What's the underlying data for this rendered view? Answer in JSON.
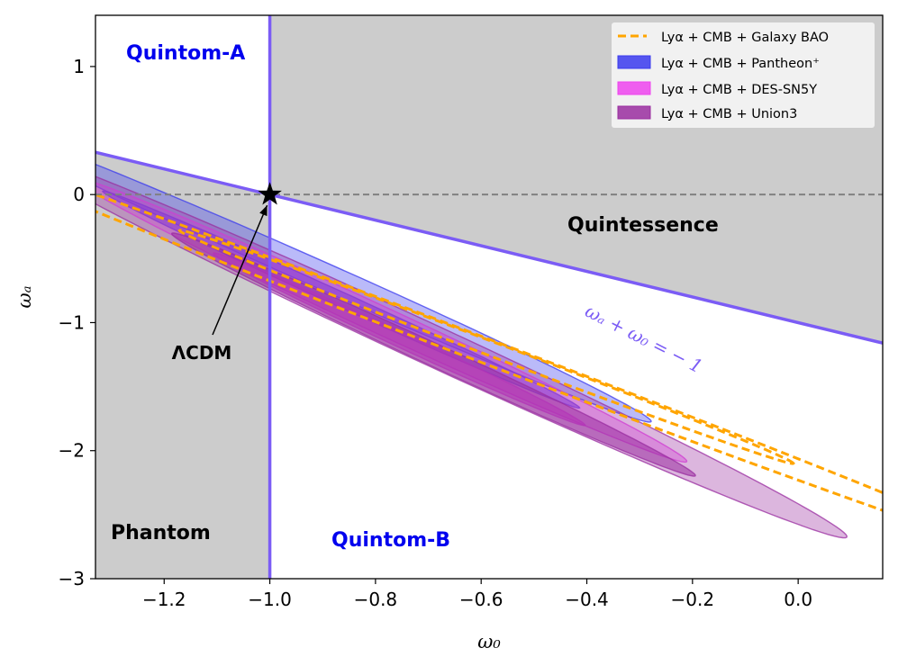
{
  "chart_data": {
    "type": "contour",
    "title": "",
    "xlabel": "ω₀",
    "ylabel": "ωₐ",
    "xlim": [
      -1.33,
      0.16
    ],
    "ylim": [
      -3.0,
      1.4
    ],
    "xticks": [
      -1.2,
      -1.0,
      -0.8,
      -0.6,
      -0.4,
      -0.2,
      0.0
    ],
    "xtick_labels": [
      "−1.2",
      "−1.0",
      "−0.8",
      "−0.6",
      "−0.4",
      "−0.2",
      "0.0"
    ],
    "yticks": [
      1,
      0,
      -1,
      -2,
      -3
    ],
    "ytick_labels": [
      "1",
      "0",
      "−1",
      "−2",
      "−3"
    ],
    "reference_lines": {
      "w0_equals_minus_one": -1.0,
      "wa_equals_zero": 0.0,
      "diagonal": {
        "label": "ωₐ + ω₀ = − 1",
        "points": [
          [
            -1.33,
            0.33
          ],
          [
            0.16,
            -1.16
          ]
        ]
      }
    },
    "regions": [
      {
        "name": "Quintom-A",
        "color": "#0000ee"
      },
      {
        "name": "Quintessence",
        "color": "#000000"
      },
      {
        "name": "Phantom",
        "color": "#000000"
      },
      {
        "name": "Quintom-B",
        "color": "#0000ee"
      }
    ],
    "annotation": {
      "text": "ΛCDM",
      "point": [
        -1.0,
        0.0
      ]
    },
    "series": [
      {
        "name": "Lyα + CMB + Pantheon⁺",
        "style": "filled",
        "color": "#3a3aee",
        "contours": [
          {
            "level": "95%",
            "center": [
              -0.905,
              -0.625
            ],
            "angle_deg": -61.5,
            "semi_major": 1.31,
            "semi_minor": 0.055
          },
          {
            "level": "68%",
            "center": [
              -0.865,
              -0.82
            ],
            "angle_deg": -62,
            "semi_major": 0.96,
            "semi_minor": 0.03
          }
        ]
      },
      {
        "name": "Lyα + CMB + DES-SN5Y",
        "style": "filled",
        "color": "#ee44ee",
        "contours": [
          {
            "level": "95%",
            "center": [
              -0.79,
              -0.98
            ],
            "angle_deg": -62.5,
            "semi_major": 1.25,
            "semi_minor": 0.055
          },
          {
            "level": "68%",
            "center": [
              -0.755,
              -1.13
            ],
            "angle_deg": -62.5,
            "semi_major": 0.76,
            "semi_minor": 0.03
          }
        ]
      },
      {
        "name": "Lyα + CMB + Union3",
        "style": "filled",
        "color": "#9a2ea0",
        "contours": [
          {
            "level": "95%",
            "center": [
              -0.705,
              -1.155
            ],
            "angle_deg": -62.5,
            "semi_major": 1.72,
            "semi_minor": 0.08
          },
          {
            "level": "68%",
            "center": [
              -0.69,
              -1.25
            ],
            "angle_deg": -62.5,
            "semi_major": 1.07,
            "semi_minor": 0.045
          }
        ]
      },
      {
        "name": "Lyα + CMB + Galaxy BAO",
        "style": "dashed",
        "color": "#ffa500",
        "contours": [
          {
            "level": "95%",
            "center": [
              -0.57,
              -1.255
            ],
            "angle_deg": -57.5,
            "semi_major": 1.84,
            "semi_minor": 0.055
          },
          {
            "level": "68%",
            "center": [
              -0.59,
              -1.19
            ],
            "angle_deg": -57.5,
            "semi_major": 1.08,
            "semi_minor": 0.032
          }
        ]
      }
    ],
    "legend": {
      "position": "top-right",
      "entries": [
        {
          "label": "Lyα + CMB + Galaxy BAO",
          "color": "#ffa500",
          "style": "dashed"
        },
        {
          "label": "Lyα + CMB + Pantheon⁺",
          "color": "#3a3aee",
          "style": "patch"
        },
        {
          "label": "Lyα + CMB + DES-SN5Y",
          "color": "#ee44ee",
          "style": "patch"
        },
        {
          "label": "Lyα + CMB + Union3",
          "color": "#9a2ea0",
          "style": "patch"
        }
      ]
    }
  }
}
